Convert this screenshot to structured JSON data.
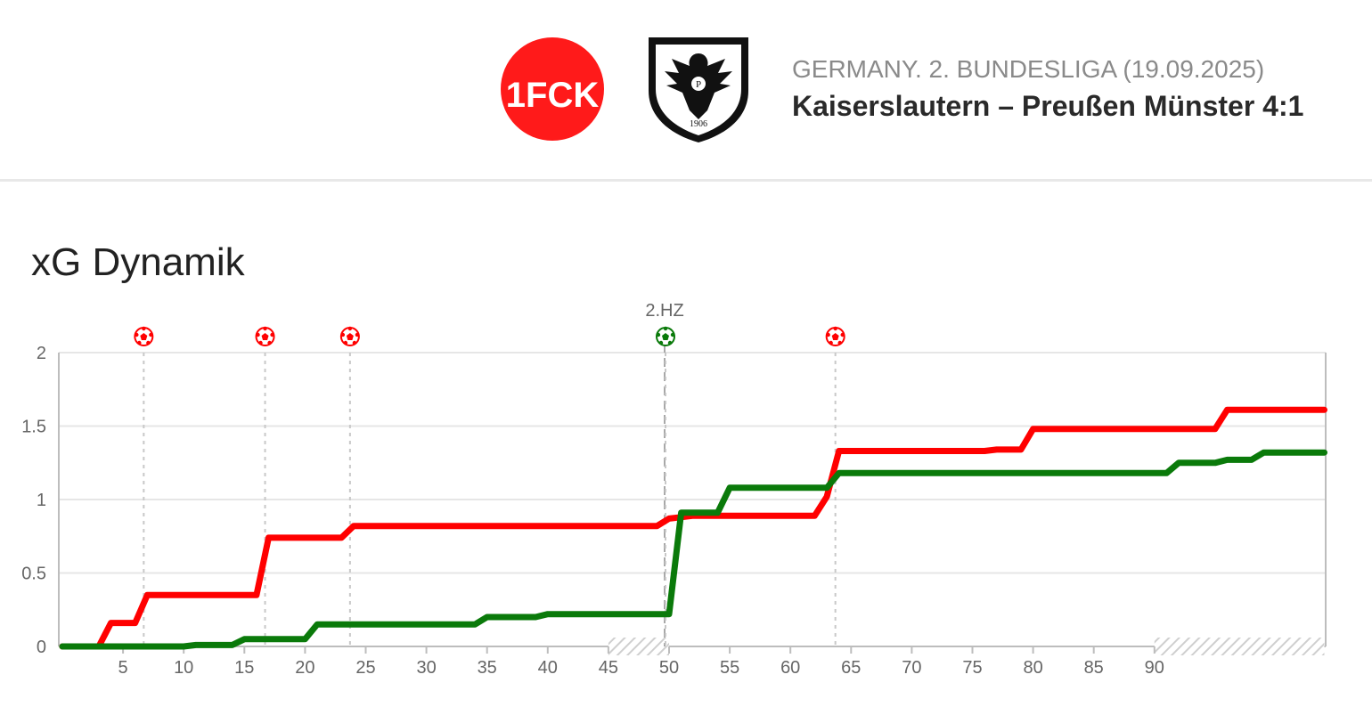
{
  "header": {
    "competition": "GERMANY. 2. BUNDESLIGA (19.09.2025)",
    "match_title": "Kaiserslautern – Preußen Münster 4:1",
    "home_logo": {
      "text": "1FCK",
      "icon": "fck-crest-icon"
    },
    "away_logo": {
      "text": "P",
      "year": "1906",
      "icon": "eagle-crest-icon"
    }
  },
  "section_title": "xG Dynamik",
  "colors": {
    "home": "#ff0000",
    "away": "#0a7a0a",
    "grid": "#e6e6e6",
    "axis": "#bdbdbd",
    "text": "#666666"
  },
  "chart_data": {
    "type": "line",
    "title": "xG Dynamik",
    "xlim": [
      0,
      104
    ],
    "ylim": [
      0,
      2
    ],
    "x_ticks": [
      5,
      10,
      15,
      20,
      25,
      30,
      35,
      40,
      45,
      50,
      55,
      60,
      65,
      70,
      75,
      80,
      85,
      90
    ],
    "y_ticks": [
      0,
      0.5,
      1,
      1.5,
      2
    ],
    "y_tick_labels": [
      "0",
      "0.5",
      "1",
      "1.5",
      "2"
    ],
    "half_time": {
      "label": "2.HZ",
      "minute": 50
    },
    "stoppage_time": [
      [
        45,
        50
      ],
      [
        90,
        104
      ]
    ],
    "goals": [
      {
        "minute": 7,
        "team": "home"
      },
      {
        "minute": 17,
        "team": "home"
      },
      {
        "minute": 24,
        "team": "home"
      },
      {
        "minute": 50,
        "team": "away"
      },
      {
        "minute": 64,
        "team": "home"
      }
    ],
    "series": [
      {
        "team": "home",
        "points": [
          [
            0,
            0
          ],
          [
            3,
            0
          ],
          [
            4,
            0.16
          ],
          [
            6,
            0.16
          ],
          [
            7,
            0.35
          ],
          [
            16,
            0.35
          ],
          [
            17,
            0.74
          ],
          [
            23,
            0.74
          ],
          [
            24,
            0.82
          ],
          [
            49,
            0.82
          ],
          [
            50,
            0.87
          ],
          [
            52,
            0.89
          ],
          [
            62,
            0.89
          ],
          [
            63,
            1.02
          ],
          [
            64,
            1.33
          ],
          [
            76,
            1.33
          ],
          [
            77,
            1.34
          ],
          [
            79,
            1.34
          ],
          [
            80,
            1.48
          ],
          [
            95,
            1.48
          ],
          [
            96,
            1.61
          ],
          [
            104,
            1.61
          ]
        ]
      },
      {
        "team": "away",
        "points": [
          [
            0,
            0
          ],
          [
            10,
            0
          ],
          [
            11,
            0.01
          ],
          [
            14,
            0.01
          ],
          [
            15,
            0.05
          ],
          [
            20,
            0.05
          ],
          [
            21,
            0.15
          ],
          [
            34,
            0.15
          ],
          [
            35,
            0.2
          ],
          [
            39,
            0.2
          ],
          [
            40,
            0.22
          ],
          [
            50,
            0.22
          ],
          [
            51,
            0.91
          ],
          [
            54,
            0.91
          ],
          [
            55,
            1.08
          ],
          [
            63,
            1.08
          ],
          [
            64,
            1.18
          ],
          [
            91,
            1.18
          ],
          [
            92,
            1.25
          ],
          [
            95,
            1.25
          ],
          [
            96,
            1.27
          ],
          [
            98,
            1.27
          ],
          [
            99,
            1.32
          ],
          [
            104,
            1.32
          ]
        ]
      }
    ]
  }
}
